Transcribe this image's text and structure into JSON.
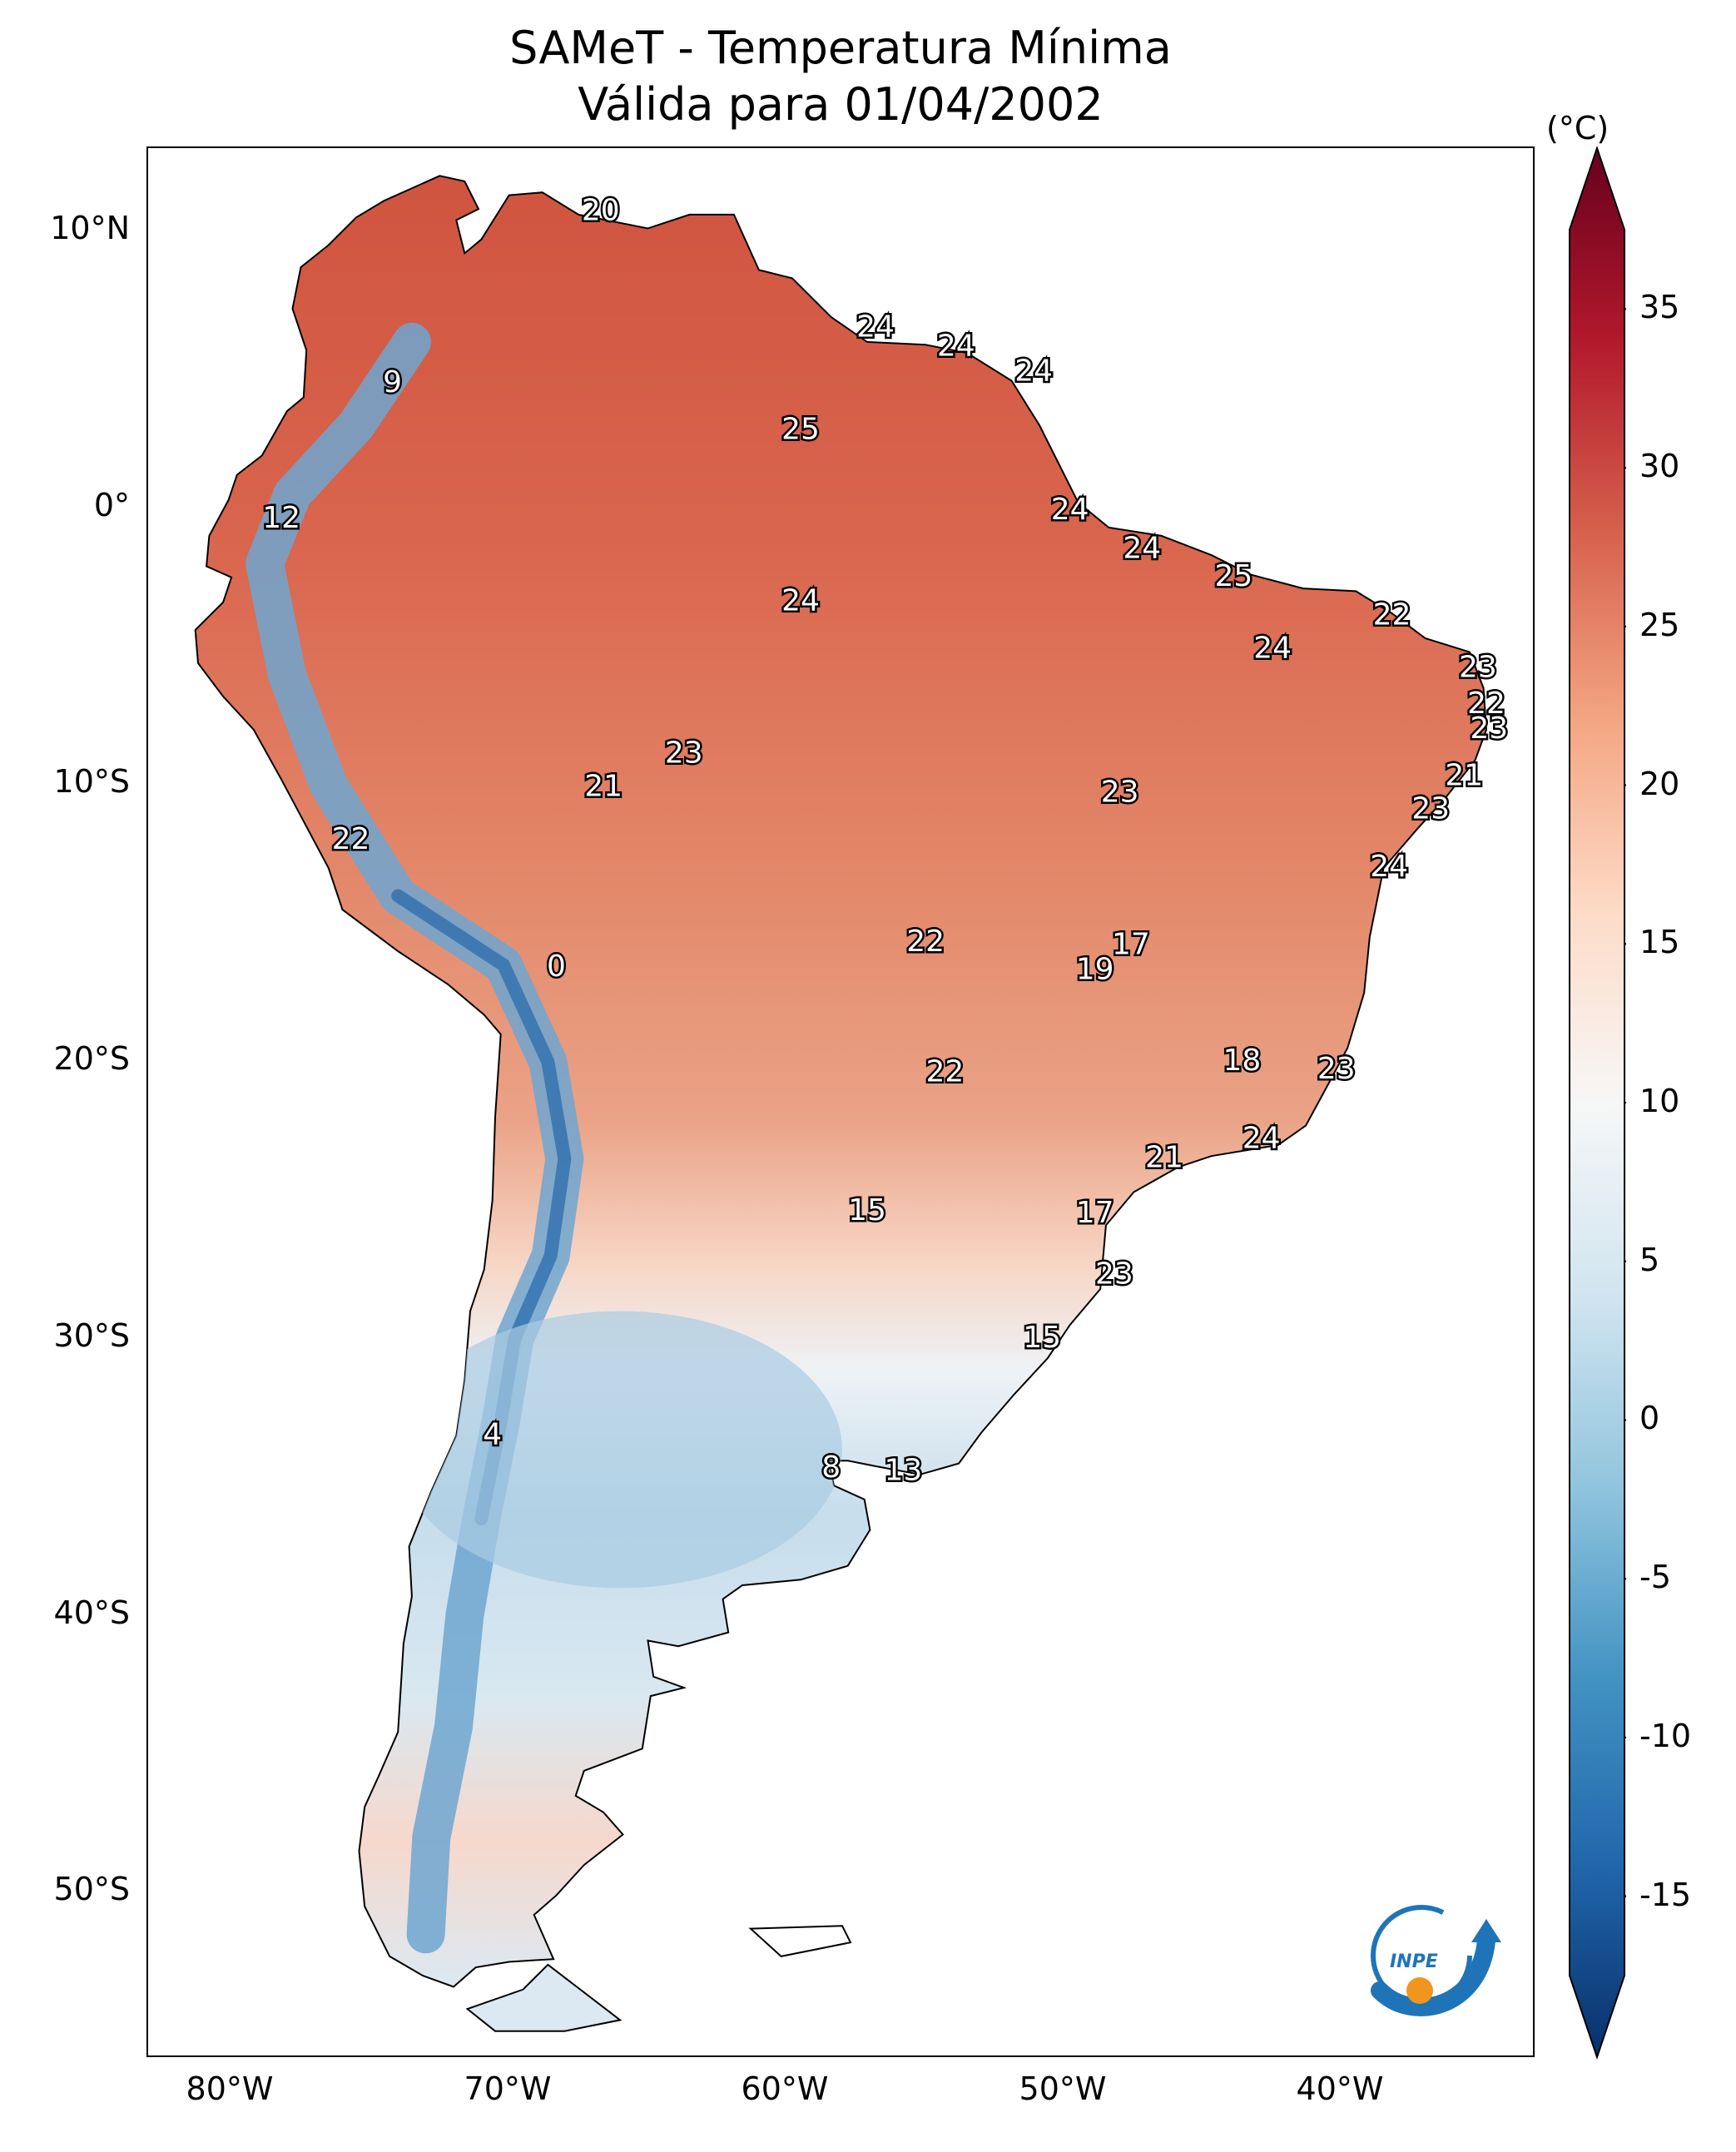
{
  "title": {
    "line1": "SAMeT - Temperatura Mínima",
    "line2": "Válida para 01/04/2002"
  },
  "axes": {
    "lat_ticks": [
      "10°N",
      "0°",
      "10°S",
      "20°S",
      "30°S",
      "40°S",
      "50°S"
    ],
    "lon_ticks": [
      "80°W",
      "70°W",
      "60°W",
      "50°W",
      "40°W"
    ]
  },
  "colorbar": {
    "unit": "(°C)",
    "ticks": [
      "35",
      "30",
      "25",
      "20",
      "15",
      "10",
      "5",
      "0",
      "-5",
      "-10",
      "-15"
    ],
    "colors": [
      "#08306b",
      "#2166ac",
      "#4393c3",
      "#92c5de",
      "#d1e5f0",
      "#f7f7f7",
      "#fddbc7",
      "#f4a582",
      "#d6604d",
      "#b2182b",
      "#67001f"
    ]
  },
  "map_labels": [
    {
      "text": "20",
      "lon": -66.7,
      "lat": 10.7
    },
    {
      "text": "9",
      "lon": -74.2,
      "lat": 4.5
    },
    {
      "text": "24",
      "lon": -56.8,
      "lat": 6.5
    },
    {
      "text": "24",
      "lon": -53.9,
      "lat": 5.8
    },
    {
      "text": "24",
      "lon": -51.1,
      "lat": 4.9
    },
    {
      "text": "25",
      "lon": -59.5,
      "lat": 2.8
    },
    {
      "text": "12",
      "lon": -78.2,
      "lat": -0.4
    },
    {
      "text": "24",
      "lon": -49.8,
      "lat": -0.1
    },
    {
      "text": "24",
      "lon": -47.2,
      "lat": -1.5
    },
    {
      "text": "25",
      "lon": -43.9,
      "lat": -2.5
    },
    {
      "text": "24",
      "lon": -59.5,
      "lat": -3.4
    },
    {
      "text": "22",
      "lon": -38.2,
      "lat": -3.9
    },
    {
      "text": "24",
      "lon": -42.5,
      "lat": -5.1
    },
    {
      "text": "23",
      "lon": -35.1,
      "lat": -5.8
    },
    {
      "text": "22",
      "lon": -34.8,
      "lat": -7.1
    },
    {
      "text": "23",
      "lon": -34.7,
      "lat": -8.0
    },
    {
      "text": "23",
      "lon": -63.7,
      "lat": -8.9
    },
    {
      "text": "21",
      "lon": -66.6,
      "lat": -10.1
    },
    {
      "text": "21",
      "lon": -35.6,
      "lat": -9.7
    },
    {
      "text": "23",
      "lon": -48.0,
      "lat": -10.3
    },
    {
      "text": "23",
      "lon": -36.8,
      "lat": -10.9
    },
    {
      "text": "22",
      "lon": -75.7,
      "lat": -12.0
    },
    {
      "text": "24",
      "lon": -38.3,
      "lat": -13.0
    },
    {
      "text": "22",
      "lon": -55.0,
      "lat": -15.7
    },
    {
      "text": "17",
      "lon": -47.6,
      "lat": -15.8
    },
    {
      "text": "0",
      "lon": -68.3,
      "lat": -16.6
    },
    {
      "text": "19",
      "lon": -48.9,
      "lat": -16.7
    },
    {
      "text": "18",
      "lon": -43.6,
      "lat": -20.0
    },
    {
      "text": "22",
      "lon": -54.3,
      "lat": -20.4
    },
    {
      "text": "23",
      "lon": -40.2,
      "lat": -20.3
    },
    {
      "text": "24",
      "lon": -42.9,
      "lat": -22.8
    },
    {
      "text": "21",
      "lon": -46.4,
      "lat": -23.5
    },
    {
      "text": "15",
      "lon": -57.1,
      "lat": -25.4
    },
    {
      "text": "17",
      "lon": -48.9,
      "lat": -25.5
    },
    {
      "text": "23",
      "lon": -48.2,
      "lat": -27.7
    },
    {
      "text": "15",
      "lon": -50.8,
      "lat": -30.0
    },
    {
      "text": "4",
      "lon": -70.6,
      "lat": -33.5
    },
    {
      "text": "8",
      "lon": -58.4,
      "lat": -34.7
    },
    {
      "text": "13",
      "lon": -55.8,
      "lat": -34.8
    }
  ],
  "logo": {
    "text": "INPE"
  }
}
